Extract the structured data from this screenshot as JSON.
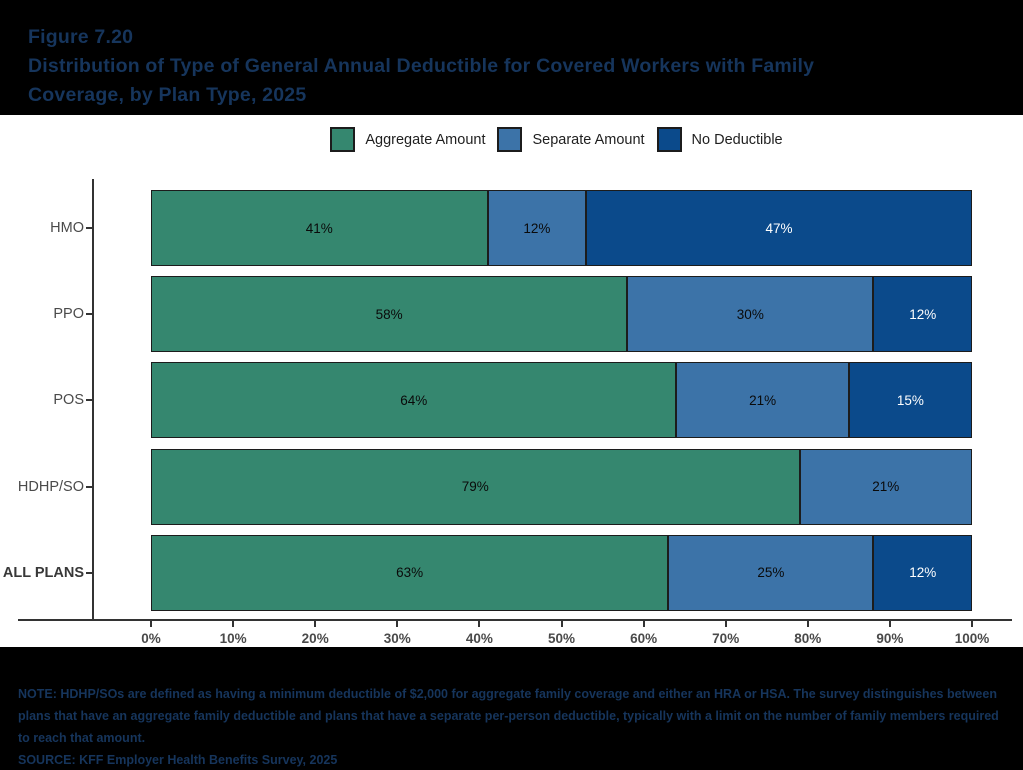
{
  "title": {
    "lines": [
      "Figure 7.20",
      "Distribution of Type of General Annual Deductible for Covered Workers with Family",
      "Coverage, by Plan Type, 2025"
    ]
  },
  "chart_data": {
    "type": "bar",
    "orientation": "horizontal",
    "stacked": true,
    "legend_position": "top",
    "categories": [
      "HMO",
      "PPO",
      "POS",
      "HDHP/SO",
      "ALL PLANS"
    ],
    "emphasized_category": "ALL PLANS",
    "series": [
      {
        "name": "Aggregate Amount",
        "color": "#35876F",
        "label_color": "#0a0a0a",
        "values": [
          41,
          58,
          64,
          79,
          63
        ]
      },
      {
        "name": "Separate Amount",
        "color": "#3C73A8",
        "label_color": "#0a0a0a",
        "values": [
          12,
          30,
          21,
          21,
          25
        ]
      },
      {
        "name": "No Deductible",
        "color": "#0B4A8B",
        "label_color": "#ffffff",
        "values": [
          47,
          12,
          15,
          null,
          12
        ]
      }
    ],
    "value_suffix": "%",
    "xlim": [
      0,
      100
    ],
    "x_ticks": [
      "0%",
      "10%",
      "20%",
      "30%",
      "40%",
      "50%",
      "60%",
      "70%",
      "80%",
      "90%",
      "100%"
    ]
  },
  "notes": {
    "note": "NOTE: HDHP/SOs are defined as having a minimum deductible of $2,000 for aggregate family coverage and either an HRA or HSA. The survey distinguishes between plans that have an aggregate family deductible and plans that have a separate per-person deductible, typically with a limit on the number of family members required to reach that amount.",
    "source": "SOURCE: KFF Employer Health Benefits Survey, 2025"
  }
}
